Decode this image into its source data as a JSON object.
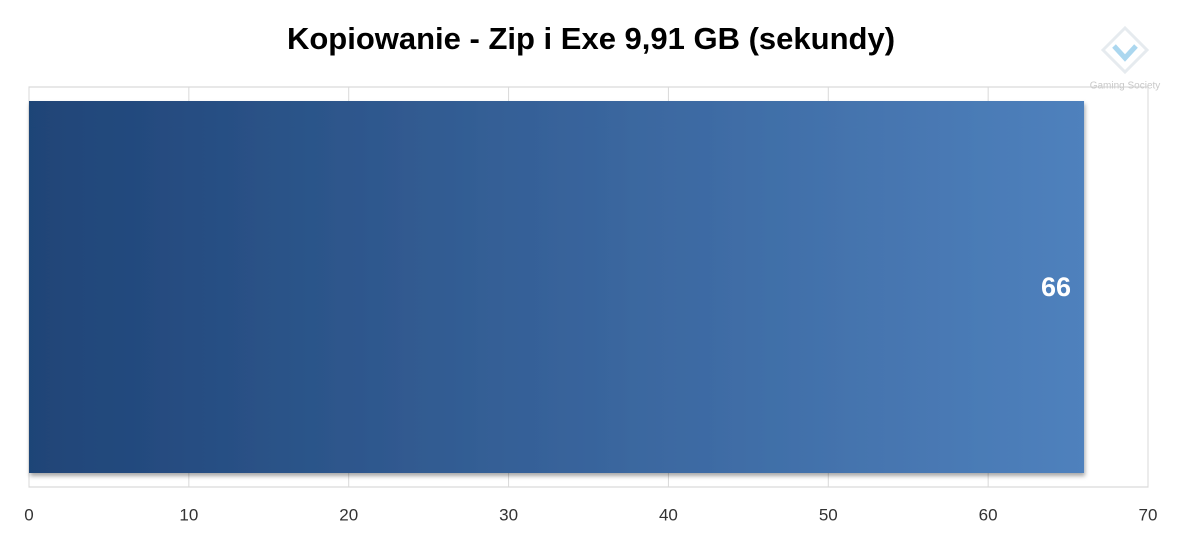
{
  "chart_data": {
    "type": "hbar",
    "title": "Kopiowanie - Zip i Exe 9,91 GB (sekundy)",
    "watermark": "Gaming Society",
    "categories": [
      null
    ],
    "values": [
      66
    ],
    "gradient": [
      "#1f4477",
      "#4f81bd"
    ],
    "label_color": "#ffffff",
    "xlim": [
      0,
      70
    ],
    "xticks": [
      0,
      10,
      20,
      30,
      40,
      50,
      60,
      70
    ],
    "grid": true
  }
}
